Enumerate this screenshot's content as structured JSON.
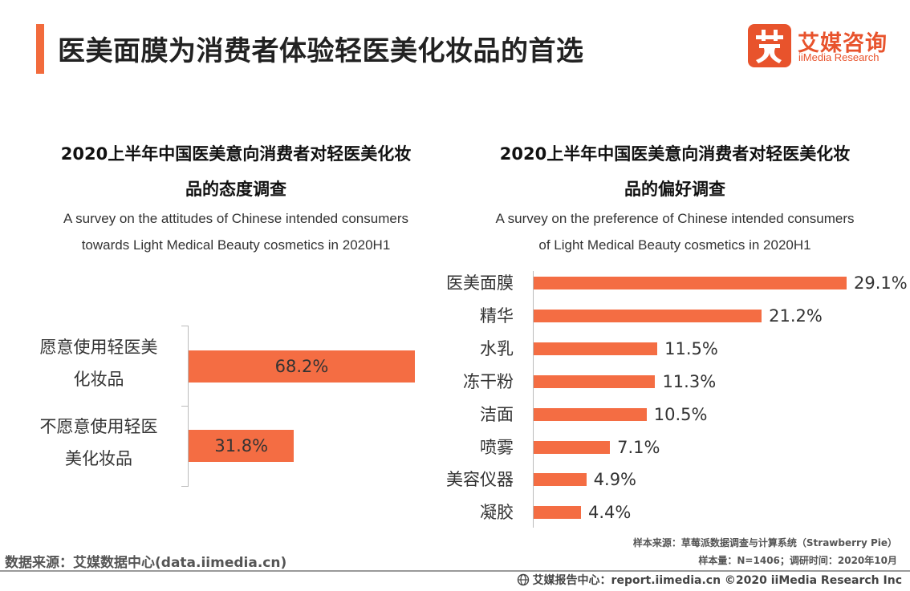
{
  "page_title": "医美面膜为消费者体验轻医美化妆品的首选",
  "logo": {
    "cn": "艾媒咨询",
    "en": "iiMedia Research",
    "colors": {
      "brand": "#e8532c",
      "bar": "#f46d43"
    }
  },
  "chart_data": [
    {
      "type": "bar",
      "orientation": "horizontal",
      "title_lines": [
        "2020上半年中国医美意向消费者对轻医美化妆",
        "品的态度调查"
      ],
      "subtitle_lines": [
        "A survey on the attitudes of Chinese intended consumers",
        "towards Light Medical Beauty cosmetics in 2020H1"
      ],
      "categories": [
        {
          "lines": [
            "愿意使用轻医美",
            "化妆品"
          ]
        },
        {
          "lines": [
            "不愿意使用轻医",
            "美化妆品"
          ]
        }
      ],
      "values": [
        68.2,
        31.8
      ],
      "value_labels": [
        "68.2%",
        "31.8%"
      ],
      "unit": "%"
    },
    {
      "type": "bar",
      "orientation": "horizontal",
      "title_lines": [
        "2020上半年中国医美意向消费者对轻医美化妆",
        "品的偏好调查"
      ],
      "subtitle_lines": [
        "A survey on the preference of Chinese intended consumers",
        "of Light Medical Beauty cosmetics in 2020H1"
      ],
      "categories": [
        "医美面膜",
        "精华",
        "水乳",
        "冻干粉",
        "洁面",
        "喷雾",
        "美容仪器",
        "凝胶"
      ],
      "values": [
        29.1,
        21.2,
        11.5,
        11.3,
        10.5,
        7.1,
        4.9,
        4.4
      ],
      "value_labels": [
        "29.1%",
        "21.2%",
        "11.5%",
        "11.3%",
        "10.5%",
        "7.1%",
        "4.9%",
        "4.4%"
      ],
      "unit": "%"
    }
  ],
  "notes": {
    "sample_source": "样本来源：草莓派数据调查与计算系统（Strawberry Pie）",
    "sample_size": "样本量：N=1406；调研时间：2020年10月"
  },
  "data_source": "数据来源：艾媒数据中心(data.iimedia.cn)",
  "footer": "艾媒报告中心：report.iimedia.cn   ©2020  iiMedia Research  Inc"
}
